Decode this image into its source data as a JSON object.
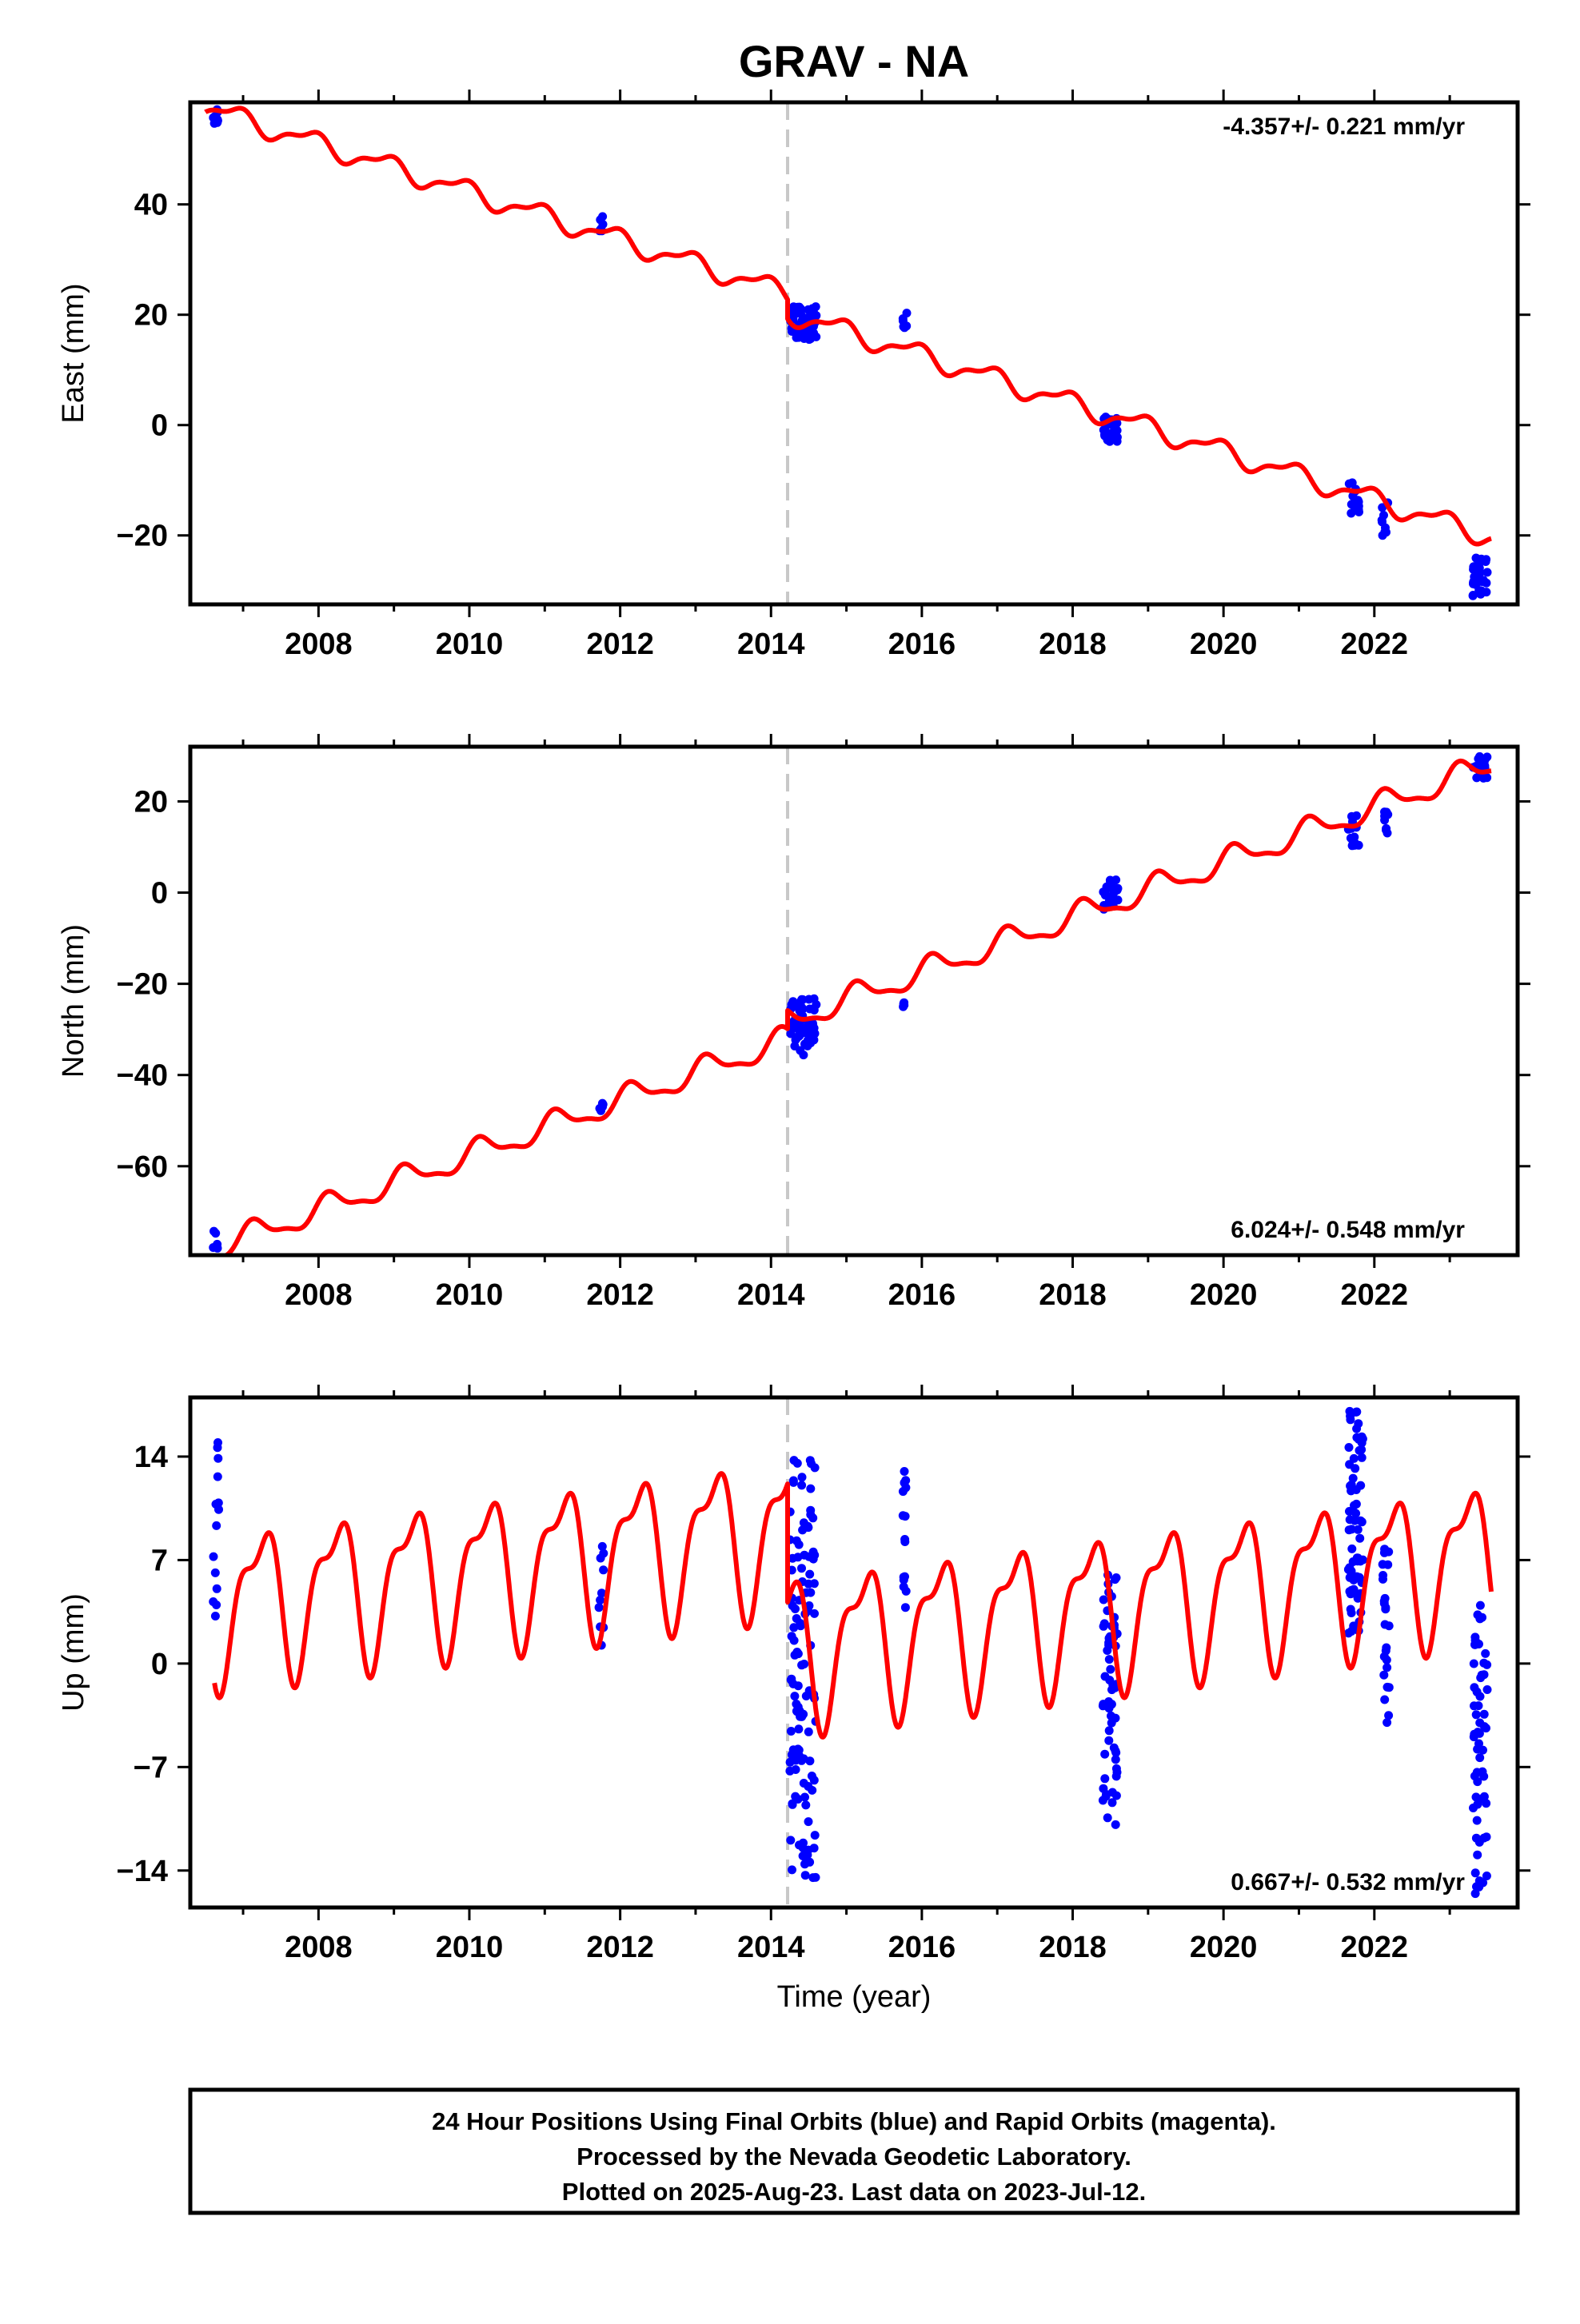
{
  "title": "GRAV - NA",
  "colors": {
    "final_orbits": "#0000ff",
    "model": "#ff0000",
    "break": "#c8c8c8",
    "axis": "#000000"
  },
  "chart_data": [
    {
      "type": "scatter",
      "name": "east",
      "ylabel": "East (mm)",
      "xlim": [
        2006.3,
        2023.9
      ],
      "ylim": [
        -32.5,
        58.5
      ],
      "x_ticks": [
        2008,
        2010,
        2012,
        2014,
        2016,
        2018,
        2020,
        2022
      ],
      "x_tick_labels": [
        "2008",
        "2010",
        "2012",
        "2014",
        "2016",
        "2018",
        "2020",
        "2022"
      ],
      "y_ticks": [
        -20,
        0,
        20,
        40
      ],
      "y_tick_labels": [
        "−20",
        "0",
        "20",
        "40"
      ],
      "rate_label": "-4.357+/- 0.221 mm/yr",
      "rate_label_position": "top-right",
      "break_line_x": 2014.22,
      "model": {
        "rate": -4.357,
        "start": 2006.5,
        "end": 2023.55,
        "t0": 2006.62,
        "y0": 57.0,
        "offset_at_break": -3.5,
        "annual_amp": 1.7,
        "semiannual_amp": 0.7,
        "phase": 2.2,
        "phase2": 1.0
      },
      "clusters": [
        {
          "x_start": 2006.6,
          "x_end": 2006.68,
          "count": 8,
          "y_min": 54,
          "y_max": 58
        },
        {
          "x_start": 2011.7,
          "x_end": 2011.78,
          "count": 6,
          "y_min": 35,
          "y_max": 38
        },
        {
          "x_start": 2014.25,
          "x_end": 2014.6,
          "count": 70,
          "y_min": 15.5,
          "y_max": 21.5
        },
        {
          "x_start": 2015.75,
          "x_end": 2015.8,
          "count": 6,
          "y_min": 17.5,
          "y_max": 20.5
        },
        {
          "x_start": 2018.4,
          "x_end": 2018.6,
          "count": 30,
          "y_min": -3,
          "y_max": 2
        },
        {
          "x_start": 2021.65,
          "x_end": 2021.8,
          "count": 20,
          "y_min": -16,
          "y_max": -10
        },
        {
          "x_start": 2022.1,
          "x_end": 2022.18,
          "count": 10,
          "y_min": -20,
          "y_max": -14
        },
        {
          "x_start": 2023.3,
          "x_end": 2023.5,
          "count": 30,
          "y_min": -31,
          "y_max": -24
        }
      ]
    },
    {
      "type": "scatter",
      "name": "north",
      "ylabel": "North (mm)",
      "xlim": [
        2006.3,
        2023.9
      ],
      "ylim": [
        -79.5,
        32.0
      ],
      "x_ticks": [
        2008,
        2010,
        2012,
        2014,
        2016,
        2018,
        2020,
        2022
      ],
      "x_tick_labels": [
        "2008",
        "2010",
        "2012",
        "2014",
        "2016",
        "2018",
        "2020",
        "2022"
      ],
      "y_ticks": [
        -60,
        -40,
        -20,
        0,
        20
      ],
      "y_tick_labels": [
        "−60",
        "−40",
        "−20",
        "0",
        "20"
      ],
      "rate_label": "6.024+/- 0.548 mm/yr",
      "rate_label_position": "bottom-right",
      "break_line_x": 2014.22,
      "model": {
        "rate": 6.024,
        "start": 2006.5,
        "end": 2023.55,
        "t0": 2006.62,
        "y0": -78.0,
        "offset_at_break": 4.0,
        "annual_amp": 2.6,
        "semiannual_amp": 0.9,
        "phase": 0.6,
        "phase2": 0.4
      },
      "clusters": [
        {
          "x_start": 2006.6,
          "x_end": 2006.68,
          "count": 6,
          "y_min": -78,
          "y_max": -74
        },
        {
          "x_start": 2011.7,
          "x_end": 2011.78,
          "count": 5,
          "y_min": -50,
          "y_max": -46
        },
        {
          "x_start": 2014.25,
          "x_end": 2014.6,
          "count": 60,
          "y_min": -36,
          "y_max": -23
        },
        {
          "x_start": 2015.75,
          "x_end": 2015.8,
          "count": 4,
          "y_min": -26,
          "y_max": -23
        },
        {
          "x_start": 2018.4,
          "x_end": 2018.6,
          "count": 25,
          "y_min": -4,
          "y_max": 3
        },
        {
          "x_start": 2021.65,
          "x_end": 2021.8,
          "count": 15,
          "y_min": 10,
          "y_max": 17
        },
        {
          "x_start": 2022.1,
          "x_end": 2022.18,
          "count": 8,
          "y_min": 13,
          "y_max": 18
        },
        {
          "x_start": 2023.3,
          "x_end": 2023.5,
          "count": 20,
          "y_min": 25,
          "y_max": 30
        }
      ]
    },
    {
      "type": "scatter",
      "name": "up",
      "ylabel": "Up (mm)",
      "xlim": [
        2006.3,
        2023.9
      ],
      "ylim": [
        -16.5,
        18.0
      ],
      "x_ticks": [
        2008,
        2010,
        2012,
        2014,
        2016,
        2018,
        2020,
        2022
      ],
      "x_tick_labels": [
        "2008",
        "2010",
        "2012",
        "2014",
        "2016",
        "2018",
        "2020",
        "2022"
      ],
      "y_ticks": [
        -14,
        -7,
        0,
        7,
        14
      ],
      "y_tick_labels": [
        "−14",
        "−7",
        "0",
        "7",
        "14"
      ],
      "xlabel": "Time (year)",
      "rate_label": "0.667+/- 0.532 mm/yr",
      "rate_label_position": "bottom-right",
      "break_line_x": 2014.22,
      "model": {
        "rate": 0.667,
        "start": 2006.62,
        "end": 2023.55,
        "t0": 2006.62,
        "y0": 4.0,
        "offset_at_break": -8.0,
        "annual_amp": 4.6,
        "semiannual_amp": 1.9,
        "phase": 0.2,
        "phase2": 2.6
      },
      "clusters": [
        {
          "x_start": 2006.6,
          "x_end": 2006.68,
          "count": 15,
          "y_min": 3,
          "y_max": 15
        },
        {
          "x_start": 2011.7,
          "x_end": 2011.78,
          "count": 10,
          "y_min": 0,
          "y_max": 8
        },
        {
          "x_start": 2014.25,
          "x_end": 2014.6,
          "count": 120,
          "y_min": -14.5,
          "y_max": 14
        },
        {
          "x_start": 2015.75,
          "x_end": 2015.8,
          "count": 15,
          "y_min": 3.5,
          "y_max": 13
        },
        {
          "x_start": 2018.4,
          "x_end": 2018.6,
          "count": 60,
          "y_min": -11.5,
          "y_max": 6
        },
        {
          "x_start": 2021.65,
          "x_end": 2021.85,
          "count": 70,
          "y_min": 2,
          "y_max": 17.5
        },
        {
          "x_start": 2022.1,
          "x_end": 2022.2,
          "count": 25,
          "y_min": -4.5,
          "y_max": 8
        },
        {
          "x_start": 2023.3,
          "x_end": 2023.5,
          "count": 60,
          "y_min": -16,
          "y_max": 4
        }
      ]
    }
  ],
  "caption": {
    "line1": "24 Hour Positions Using Final Orbits (blue) and Rapid Orbits (magenta).",
    "line2": "Processed by the Nevada Geodetic Laboratory.",
    "line3": "Plotted on 2025-Aug-23. Last data on 2023-Jul-12."
  }
}
